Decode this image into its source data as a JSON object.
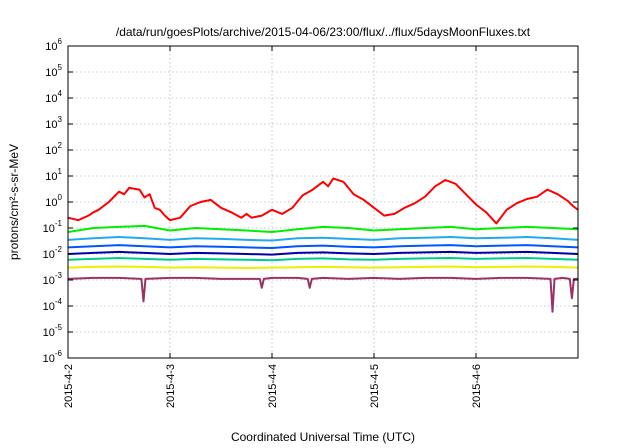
{
  "chart_data": {
    "type": "line",
    "title": "/data/run/goesPlots/archive/2015-04-06/23:00/flux/../flux/5daysMoonFluxes.txt",
    "xlabel": "Coordinated Universal Time (UTC)",
    "ylabel": "protons/cm²-s-sr-MeV",
    "yscale": "log",
    "ylim": [
      1e-06,
      1000000.0
    ],
    "xlim": [
      "2015-04-02 00:00",
      "2015-04-07 00:00"
    ],
    "x_ticks": [
      "2015-4-2",
      "2015-4-3",
      "2015-4-4",
      "2015-4-5",
      "2015-4-6"
    ],
    "y_ticks": [
      {
        "value": 1e-06,
        "base": "10",
        "exp": "-6"
      },
      {
        "value": 1e-05,
        "base": "10",
        "exp": "-5"
      },
      {
        "value": 0.0001,
        "base": "10",
        "exp": "-4"
      },
      {
        "value": 0.001,
        "base": "10",
        "exp": "-3"
      },
      {
        "value": 0.01,
        "base": "10",
        "exp": "-2"
      },
      {
        "value": 0.1,
        "base": "10",
        "exp": "-1"
      },
      {
        "value": 1.0,
        "base": "10",
        "exp": "0"
      },
      {
        "value": 10.0,
        "base": "10",
        "exp": "1"
      },
      {
        "value": 100.0,
        "base": "10",
        "exp": "2"
      },
      {
        "value": 1000.0,
        "base": "10",
        "exp": "3"
      },
      {
        "value": 10000.0,
        "base": "10",
        "exp": "4"
      },
      {
        "value": 100000.0,
        "base": "10",
        "exp": "5"
      },
      {
        "value": 1000000.0,
        "base": "10",
        "exp": "6"
      }
    ],
    "grid": true,
    "series": [
      {
        "color": "#ff0000",
        "x": [
          0,
          0.1,
          0.2,
          0.25,
          0.3,
          0.4,
          0.5,
          0.55,
          0.6,
          0.7,
          0.75,
          0.8,
          0.85,
          0.9,
          0.95,
          1.0,
          1.1,
          1.2,
          1.3,
          1.4,
          1.5,
          1.6,
          1.7,
          1.75,
          1.8,
          1.9,
          2.0,
          2.1,
          2.2,
          2.3,
          2.4,
          2.5,
          2.55,
          2.6,
          2.7,
          2.8,
          2.9,
          3.0,
          3.1,
          3.2,
          3.3,
          3.4,
          3.5,
          3.6,
          3.7,
          3.8,
          3.9,
          4.0,
          4.1,
          4.2,
          4.3,
          4.4,
          4.5,
          4.6,
          4.7,
          4.8,
          4.9,
          4.95,
          5.0
        ],
        "y": [
          0.25,
          0.2,
          0.3,
          0.4,
          0.5,
          1.0,
          2.5,
          2.0,
          3.5,
          3.0,
          1.5,
          2.0,
          0.6,
          0.5,
          0.3,
          0.2,
          0.25,
          0.7,
          1.0,
          1.2,
          0.6,
          0.4,
          0.25,
          0.35,
          0.25,
          0.3,
          0.5,
          0.35,
          0.6,
          1.8,
          3.0,
          6.0,
          4.0,
          8.0,
          6.0,
          2.0,
          1.2,
          0.6,
          0.3,
          0.35,
          0.6,
          0.9,
          1.6,
          4.0,
          7.0,
          5.0,
          2.0,
          0.8,
          0.4,
          0.15,
          0.5,
          0.9,
          1.3,
          1.6,
          3.0,
          2.0,
          1.1,
          0.7,
          0.5
        ]
      },
      {
        "color": "#00ee00",
        "x": [
          0,
          0.25,
          0.5,
          0.75,
          1.0,
          1.25,
          1.5,
          1.75,
          2.0,
          2.25,
          2.5,
          2.75,
          3.0,
          3.25,
          3.5,
          3.75,
          4.0,
          4.25,
          4.5,
          4.75,
          5.0
        ],
        "y": [
          0.07,
          0.1,
          0.11,
          0.12,
          0.08,
          0.1,
          0.09,
          0.08,
          0.07,
          0.09,
          0.11,
          0.1,
          0.08,
          0.09,
          0.1,
          0.11,
          0.09,
          0.1,
          0.11,
          0.1,
          0.09
        ]
      },
      {
        "color": "#22aaee",
        "x": [
          0,
          0.25,
          0.5,
          0.75,
          1.0,
          1.25,
          1.5,
          1.75,
          2.0,
          2.25,
          2.5,
          2.75,
          3.0,
          3.25,
          3.5,
          3.75,
          4.0,
          4.25,
          4.5,
          4.75,
          5.0
        ],
        "y": [
          0.035,
          0.04,
          0.045,
          0.04,
          0.035,
          0.04,
          0.038,
          0.035,
          0.033,
          0.04,
          0.042,
          0.038,
          0.035,
          0.04,
          0.042,
          0.045,
          0.04,
          0.042,
          0.045,
          0.04,
          0.035
        ]
      },
      {
        "color": "#0055ff",
        "x": [
          0,
          0.25,
          0.5,
          0.75,
          1.0,
          1.25,
          1.5,
          1.75,
          2.0,
          2.25,
          2.5,
          2.75,
          3.0,
          3.25,
          3.5,
          3.75,
          4.0,
          4.25,
          4.5,
          4.75,
          5.0
        ],
        "y": [
          0.018,
          0.02,
          0.022,
          0.02,
          0.018,
          0.02,
          0.019,
          0.018,
          0.017,
          0.02,
          0.021,
          0.019,
          0.018,
          0.02,
          0.021,
          0.022,
          0.02,
          0.021,
          0.022,
          0.02,
          0.018
        ]
      },
      {
        "color": "#0000aa",
        "x": [
          0,
          0.25,
          0.5,
          0.75,
          1.0,
          1.25,
          1.5,
          1.75,
          2.0,
          2.25,
          2.5,
          2.75,
          3.0,
          3.25,
          3.5,
          3.75,
          4.0,
          4.25,
          4.5,
          4.75,
          5.0
        ],
        "y": [
          0.01,
          0.011,
          0.012,
          0.011,
          0.01,
          0.011,
          0.0105,
          0.01,
          0.0095,
          0.011,
          0.0115,
          0.0105,
          0.01,
          0.011,
          0.0115,
          0.012,
          0.011,
          0.0115,
          0.012,
          0.011,
          0.01
        ]
      },
      {
        "color": "#00cc88",
        "x": [
          0,
          0.25,
          0.5,
          0.75,
          1.0,
          1.25,
          1.5,
          1.75,
          2.0,
          2.25,
          2.5,
          2.75,
          3.0,
          3.25,
          3.5,
          3.75,
          4.0,
          4.25,
          4.5,
          4.75,
          5.0
        ],
        "y": [
          0.006,
          0.0065,
          0.007,
          0.0065,
          0.006,
          0.0065,
          0.0062,
          0.006,
          0.0058,
          0.0065,
          0.0068,
          0.0062,
          0.006,
          0.0065,
          0.0068,
          0.007,
          0.0065,
          0.0068,
          0.007,
          0.0065,
          0.006
        ]
      },
      {
        "color": "#eeee00",
        "x": [
          0,
          0.25,
          0.5,
          0.75,
          1.0,
          1.25,
          1.5,
          1.75,
          2.0,
          2.25,
          2.5,
          2.75,
          3.0,
          3.25,
          3.5,
          3.75,
          4.0,
          4.25,
          4.5,
          4.75,
          5.0
        ],
        "y": [
          0.003,
          0.0032,
          0.0033,
          0.0032,
          0.003,
          0.0031,
          0.003,
          0.0029,
          0.003,
          0.0031,
          0.0032,
          0.0031,
          0.003,
          0.0031,
          0.0032,
          0.0033,
          0.0031,
          0.0032,
          0.0033,
          0.0032,
          0.003
        ]
      },
      {
        "color": "#993366",
        "x": [
          0,
          0.25,
          0.5,
          0.72,
          0.74,
          0.76,
          1.0,
          1.25,
          1.5,
          1.88,
          1.9,
          1.92,
          2.0,
          2.25,
          2.35,
          2.37,
          2.39,
          2.5,
          2.75,
          3.0,
          3.25,
          3.5,
          3.75,
          4.0,
          4.25,
          4.5,
          4.73,
          4.75,
          4.77,
          4.85,
          4.92,
          4.94,
          4.96,
          5.0
        ],
        "y": [
          0.0011,
          0.0012,
          0.0012,
          0.0011,
          0.00015,
          0.0011,
          0.0012,
          0.0012,
          0.0011,
          0.0011,
          0.0005,
          0.0011,
          0.0012,
          0.0012,
          0.0011,
          0.0005,
          0.0011,
          0.0012,
          0.0011,
          0.0012,
          0.0011,
          0.0012,
          0.0012,
          0.0011,
          0.0012,
          0.0012,
          0.0011,
          6e-05,
          0.0011,
          0.0012,
          0.0011,
          0.0002,
          0.0011,
          0.0011
        ]
      }
    ]
  }
}
